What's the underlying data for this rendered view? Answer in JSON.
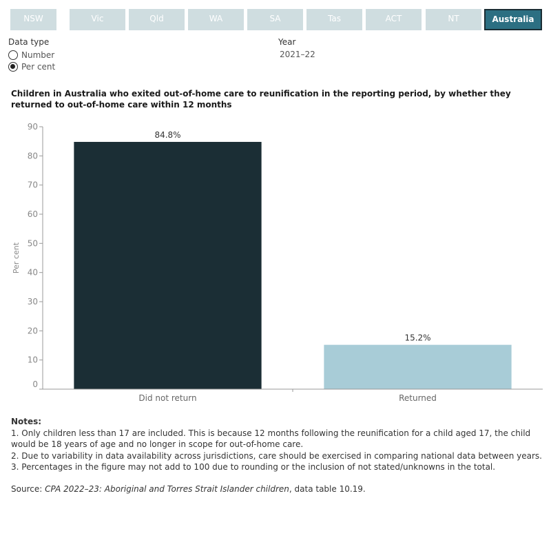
{
  "tabs": [
    {
      "label": "NSW",
      "active": false
    },
    {
      "label": "Vic",
      "active": false
    },
    {
      "label": "Qld",
      "active": false
    },
    {
      "label": "WA",
      "active": false
    },
    {
      "label": "SA",
      "active": false
    },
    {
      "label": "Tas",
      "active": false
    },
    {
      "label": "ACT",
      "active": false
    },
    {
      "label": "NT",
      "active": false
    },
    {
      "label": "Australia",
      "active": true
    }
  ],
  "controls": {
    "data_type_label": "Data type",
    "options": [
      {
        "label": "Number",
        "checked": false
      },
      {
        "label": "Per cent",
        "checked": true
      }
    ],
    "year_label": "Year",
    "year_value": "2021–22"
  },
  "chart_title": "Children in Australia who exited out-of-home care to reunification in the reporting period, by whether they returned to out-of-home care within 12 months",
  "chart_data": {
    "type": "bar",
    "categories": [
      "Did not return",
      "Returned"
    ],
    "values": [
      84.8,
      15.2
    ],
    "data_labels": [
      "84.8%",
      "15.2%"
    ],
    "colors": [
      "#1b2e35",
      "#a8ccd7"
    ],
    "ylabel": "Per cent",
    "xlabel": "",
    "ylim": [
      0,
      90
    ],
    "yticks": [
      0,
      10,
      20,
      30,
      40,
      50,
      60,
      70,
      80,
      90
    ],
    "grid": false
  },
  "notes": {
    "heading": "Notes:",
    "items": [
      "1. Only children less than 17 are included. This is because 12 months following the reunification for a child aged 17, the child would be 18 years of age and no longer in scope for out-of-home care.",
      "2. Due to variability in data availability across jurisdictions, care should be exercised in comparing national data between years.",
      "3. Percentages in the figure may not add to 100 due to rounding or the inclusion of not stated/unknowns in the total."
    ]
  },
  "source": {
    "prefix": "Source: ",
    "title": "CPA 2022–23: Aboriginal and Torres Strait Islander children",
    "suffix": ", data table 10.19."
  }
}
